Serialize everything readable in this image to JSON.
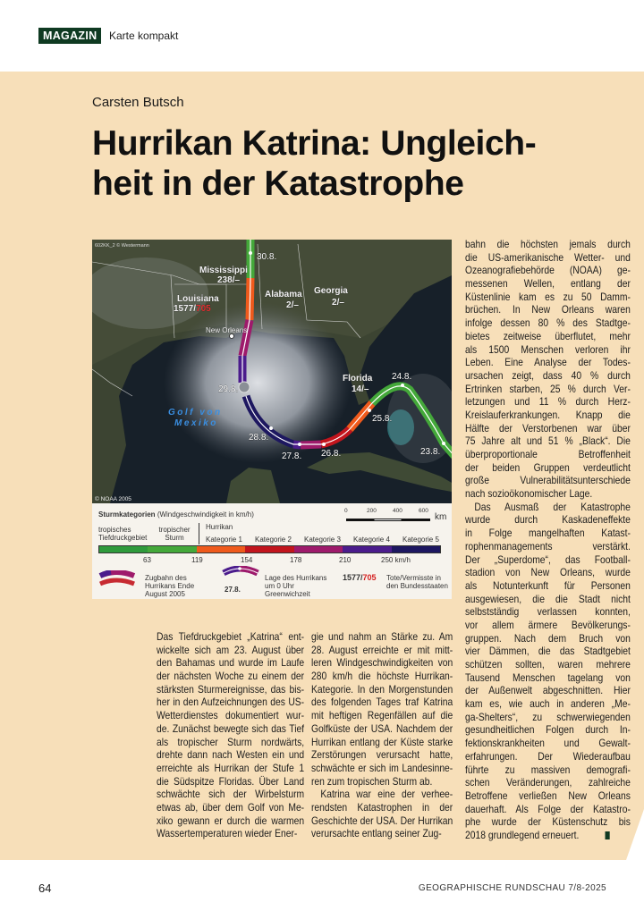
{
  "header": {
    "rubric": "MAGAZIN",
    "section": "Karte kompakt"
  },
  "article": {
    "author": "Carsten Butsch",
    "title_lines": [
      "Hurrikan Katrina: Ungleich-",
      "heit in der Katastrophe"
    ],
    "columns": [
      {
        "paragraphs": [
          [
            "Das Tiefdruckgebiet „Katrina“ ent-",
            "wickelte sich am 23. August über",
            "den Bahamas und wurde im Laufe",
            "der nächsten Woche zu einem der",
            "stärksten Sturmereignisse, das bis-",
            "her in den Aufzeichnungen des US-",
            "Wetterdienstes dokumentiert wur-",
            "de. Zunächst bewegte sich das Tief",
            "als tropischer Sturm nordwärts,",
            "drehte dann nach Westen ein und",
            "erreichte als Hurrikan der Stufe 1",
            "die Südspitze Floridas. Über Land",
            "schwächte sich der Wirbelsturm",
            "etwas ab, über dem Golf von Me-",
            "xiko gewann er durch die warmen",
            "Wassertemperaturen wieder Ener-"
          ]
        ]
      },
      {
        "paragraphs": [
          [
            "gie und nahm an Stärke zu. Am",
            "28. August erreichte er mit mitt-",
            "leren Windgeschwindigkeiten von",
            "280 km/h die höchste Hurrikan-",
            "Kategorie. In den Morgenstunden",
            "des folgenden Tages traf Katrina",
            "mit heftigen Regenfällen auf die",
            "Golfküste der USA. Nachdem der",
            "Hurrikan entlang der Küste starke",
            "Zerstörungen verursacht hatte,",
            "schwächte er sich im Landesinne-",
            "ren zum tropischen Sturm ab."
          ],
          [
            "Katrina war eine der verhee-",
            "rendsten Katastrophen in der",
            "Geschichte der USA. Der Hurrikan",
            "verursachte entlang seiner Zug-"
          ]
        ]
      },
      {
        "paragraphs": [
          [
            "bahn die höchsten jemals durch",
            "die US-amerikanische Wetter- und",
            "Ozeanografiebehörde (NOAA) ge-",
            "messenen Wellen, entlang der",
            "Küstenlinie kam es zu 50 Damm-",
            "brüchen. In New Orleans waren",
            "infolge dessen 80 % des Stadtge-",
            "bietes zeitweise überflutet, mehr",
            "als 1500 Menschen verloren ihr",
            "Leben. Eine Analyse der Todes-",
            "ursachen zeigt, dass 40 % durch",
            "Ertrinken starben, 25 % durch Ver-",
            "letzungen und 11 % durch Herz-",
            "Kreislauferkrankungen. Knapp die",
            "Hälfte der Verstorbenen war über",
            "75 Jahre alt und 51 % „Black“. Die",
            "überproportionale Betroffenheit",
            "der beiden Gruppen verdeutlicht",
            "große Vulnerabilitätsunterschiede",
            "nach sozioökonomischer Lage."
          ],
          [
            "Das Ausmaß der Katastrophe",
            "wurde durch Kaskadeneffekte",
            "in Folge mangelhaften Katast-",
            "rophenmanagements verstärkt.",
            "Der „Superdome“, das Football-",
            "stadion von New Orleans, wurde",
            "als Notunterkunft für Personen",
            "ausgewiesen, die die Stadt nicht",
            "selbstständig verlassen konnten,",
            "vor allem ärmere Bevölkerungs-",
            "gruppen. Nach dem Bruch von",
            "vier Dämmen, die das Stadtgebiet",
            "schützen sollten, waren mehrere",
            "Tausend Menschen tagelang von",
            "der Außenwelt abgeschnitten. Hier",
            "kam es, wie auch in anderen „Me-",
            "ga-Shelters“, zu schwerwiegenden",
            "gesundheitlichen Folgen durch In-",
            "fektionskrankheiten und Gewalt-",
            "erfahrungen. Der Wiederaufbau",
            "führte zu massiven demografi-",
            "schen Veränderungen, zahlreiche",
            "Betroffene verließen New Orleans",
            "dauerhaft. Als Folge der Katastro-",
            "phe wurde der Küstenschutz bis",
            "2018 grundlegend erneuert."
          ]
        ]
      }
    ]
  },
  "map": {
    "credit_top": "602KK_2 © Westermann",
    "credit_bottom": "© NOAA 2005",
    "gulf_label": [
      "Golf von",
      "Mexiko"
    ],
    "states": [
      {
        "name": "Mississippi",
        "dead": "238",
        "missing": "–"
      },
      {
        "name": "Louisiana",
        "dead": "1577",
        "missing": "705"
      },
      {
        "name": "Alabama",
        "dead": "2",
        "missing": "–"
      },
      {
        "name": "Georgia",
        "dead": "2",
        "missing": "–"
      },
      {
        "name": "Florida",
        "dead": "14",
        "missing": "–"
      }
    ],
    "city": "New Orleans",
    "dates": [
      "30.8.",
      "29.8.",
      "28.8.",
      "27.8.",
      "26.8.",
      "25.8.",
      "24.8.",
      "23.8."
    ]
  },
  "legend": {
    "title": "Sturmkategorien",
    "subtitle": "(Windgeschwindigkeit in km/h)",
    "scale": {
      "ticks": [
        "0",
        "200",
        "400",
        "600"
      ],
      "unit": "km"
    },
    "hurrikan_label": "Hurrikan",
    "categories": [
      {
        "label": "tropisches Tiefdruckgebiet",
        "color": "#2f9a3c"
      },
      {
        "label": "tropischer Sturm",
        "color": "#44a83a"
      },
      {
        "label": "Kategorie 1",
        "color": "#ef5a1c"
      },
      {
        "label": "Kategorie 2",
        "color": "#c2151d"
      },
      {
        "label": "Kategorie 3",
        "color": "#9e1a6b"
      },
      {
        "label": "Kategorie 4",
        "color": "#4b1c8c"
      },
      {
        "label": "Kategorie 5",
        "color": "#1d1760"
      }
    ],
    "thresholds": [
      "63",
      "119",
      "154",
      "178",
      "210",
      "250 km/h"
    ],
    "track_label": "Zugbahn des Hurrikans Ende August 2005",
    "position_label": "Lage des Hurrikans um 0 Uhr Greenwichzeit",
    "position_example": "27.8.",
    "casualty_example": {
      "dead": "1577",
      "missing": "705"
    },
    "casualty_label": "Tote/Vermisste in den Bundesstaaten",
    "missing_color": "#d42020"
  },
  "footer": {
    "page": "64",
    "journal": "GEOGRAPHISCHE RUNDSCHAU 7/8-2025"
  }
}
